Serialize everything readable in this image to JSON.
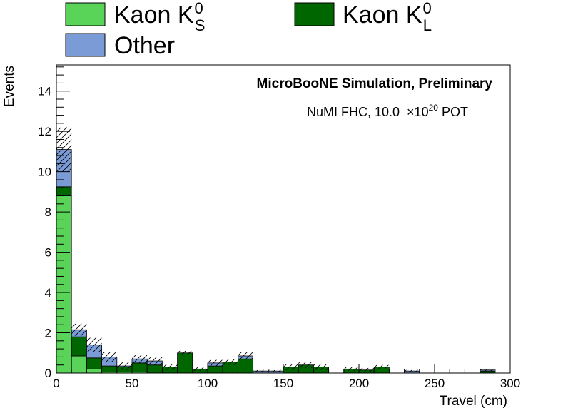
{
  "chart_data": {
    "type": "bar",
    "stacked": true,
    "xlabel": "Travel (cm)",
    "ylabel": "Events",
    "xlim": [
      0,
      300
    ],
    "ylim": [
      0,
      15.3
    ],
    "x_ticks": [
      0,
      50,
      100,
      150,
      200,
      250,
      300
    ],
    "y_ticks": [
      0,
      2,
      4,
      6,
      8,
      10,
      12,
      14
    ],
    "bin_width": 10,
    "bin_starts": [
      0,
      10,
      20,
      30,
      40,
      50,
      60,
      70,
      80,
      90,
      100,
      110,
      120,
      130,
      140,
      150,
      160,
      170,
      180,
      190,
      200,
      210,
      220,
      230,
      240,
      250,
      260,
      270,
      280,
      290
    ],
    "series": [
      {
        "key": "ks",
        "name": "Kaon K",
        "sup": "0",
        "sub": "S",
        "color": "#59d459",
        "values": [
          8.8,
          0.85,
          0.2,
          0.05,
          0.05,
          0.05,
          0.0,
          0.0,
          0.0,
          0.0,
          0.0,
          0.0,
          0.0,
          0.0,
          0.0,
          0.0,
          0.0,
          0.0,
          0.0,
          0.0,
          0.0,
          0.0,
          0.0,
          0.0,
          0.0,
          0.0,
          0.0,
          0.0,
          0.0,
          0.0
        ]
      },
      {
        "key": "kl",
        "name": "Kaon K",
        "sup": "0",
        "sub": "L",
        "color": "#006600",
        "values": [
          0.45,
          0.95,
          0.55,
          0.3,
          0.25,
          0.45,
          0.4,
          0.3,
          1.0,
          0.2,
          0.35,
          0.55,
          0.7,
          0.0,
          0.0,
          0.3,
          0.4,
          0.3,
          0.0,
          0.2,
          0.15,
          0.3,
          0.0,
          0.0,
          0.0,
          0.0,
          0.0,
          0.0,
          0.1,
          0.0
        ]
      },
      {
        "key": "other",
        "name": "Other",
        "color": "#7b9bd6",
        "values": [
          1.85,
          0.35,
          0.65,
          0.45,
          0.05,
          0.2,
          0.2,
          0.0,
          0.0,
          0.0,
          0.15,
          0.0,
          0.15,
          0.1,
          0.1,
          0.0,
          0.0,
          0.0,
          0.0,
          0.0,
          0.0,
          0.0,
          0.0,
          0.1,
          0.0,
          0.0,
          0.0,
          0.0,
          0.05,
          0.0
        ]
      }
    ],
    "uncertainty_band": {
      "hatched": true,
      "half_widths": [
        1.1,
        0.3,
        0.35,
        0.25,
        0.2,
        0.2,
        0.2,
        0.15,
        0.1,
        0.1,
        0.15,
        0.15,
        0.2,
        0.05,
        0.05,
        0.15,
        0.15,
        0.15,
        0.0,
        0.1,
        0.1,
        0.1,
        0.0,
        0.05,
        0.0,
        0.0,
        0.0,
        0.0,
        0.05,
        0.0
      ]
    },
    "annotations": {
      "title": "MicroBooNE Simulation, Preliminary",
      "exposure_prefix": "NuMI FHC, 10.0",
      "exposure_times": "×10",
      "exposure_exp": "20",
      "exposure_suffix": "POT"
    },
    "grid": false,
    "legend_position": "top"
  }
}
